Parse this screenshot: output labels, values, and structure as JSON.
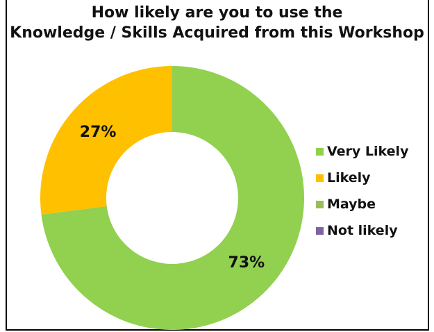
{
  "chart_data": {
    "type": "pie",
    "title_lines": [
      "How likely are you to use the",
      "Knowledge / Skills Acquired from this Workshop"
    ],
    "categories": [
      "Very Likely",
      "Likely",
      "Maybe",
      "Not likely"
    ],
    "values": [
      73,
      27,
      0,
      0
    ],
    "data_labels": [
      "73%",
      "27%",
      "",
      ""
    ],
    "colors": [
      "#92D050",
      "#FFC000",
      "#9BBB59",
      "#8064A2"
    ],
    "style": "donut",
    "legend_position": "right"
  }
}
